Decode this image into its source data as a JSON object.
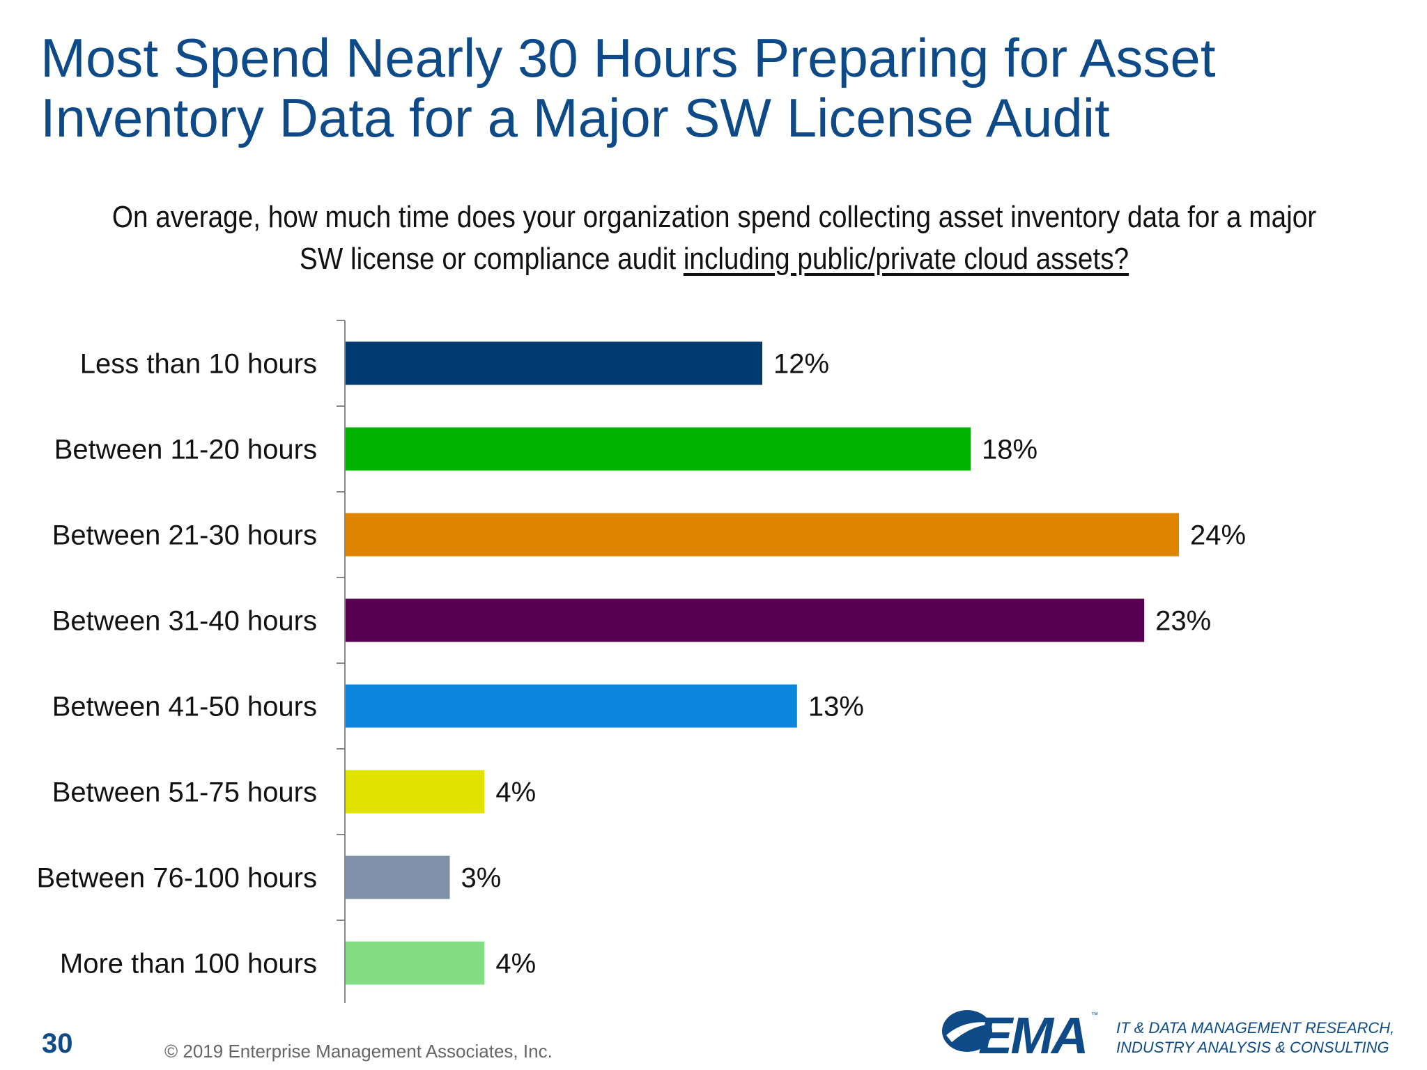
{
  "title_lines": [
    "Most Spend Nearly 30 Hours Preparing for Asset",
    "Inventory Data for a Major SW License Audit"
  ],
  "question": {
    "text": "On average, how much time does your organization spend collecting asset inventory data for a major SW license or compliance audit ",
    "underlined": "including public/private cloud assets?"
  },
  "chart_data": {
    "type": "bar",
    "orientation": "horizontal",
    "categories": [
      "Less than 10 hours",
      "Between 11-20 hours",
      "Between 21-30 hours",
      "Between 31-40 hours",
      "Between 41-50 hours",
      "Between 51-75 hours",
      "Between 76-100 hours",
      "More than 100 hours"
    ],
    "values": [
      12,
      18,
      24,
      23,
      13,
      4,
      3,
      4
    ],
    "value_labels": [
      "12%",
      "18%",
      "24%",
      "23%",
      "13%",
      "4%",
      "3%",
      "4%"
    ],
    "colors": [
      "#003b6f",
      "#00b300",
      "#e08500",
      "#580052",
      "#0a86dd",
      "#e2e200",
      "#8190a9",
      "#84dc84"
    ],
    "unit": "%",
    "xlim": [
      0,
      24
    ]
  },
  "footer": {
    "page_number": "30",
    "copyright": "© 2019 Enterprise Management Associates, Inc.",
    "logo_text": "EMA",
    "tm": "™",
    "tagline": [
      "IT & DATA MANAGEMENT RESEARCH,",
      "INDUSTRY ANALYSIS & CONSULTING"
    ]
  },
  "colors": {
    "title": "#0d4a87",
    "axis": "#888888"
  }
}
